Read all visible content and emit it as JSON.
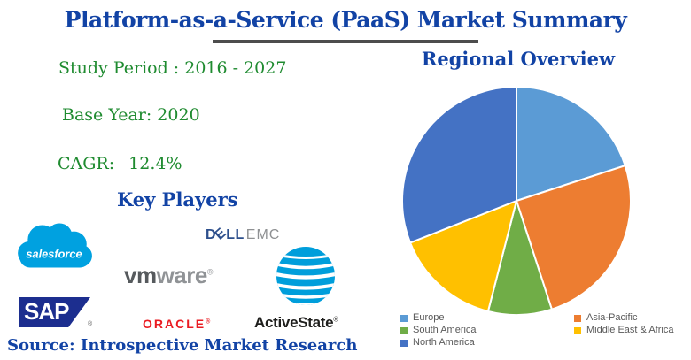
{
  "page": {
    "title": "Platform-as-a-Service (PaaS) Market Summary",
    "source_note": "Source: Introspective Market Research",
    "accent_blue": "#1243a5",
    "stat_green": "#1f8b30",
    "underline_color": "#4d4d4d",
    "legend_text_color": "#595959"
  },
  "stats": {
    "study_period": "Study Period : 2016 - 2027",
    "base_year": "Base Year: 2020",
    "cagr_label": "CAGR:",
    "cagr_value": "12.4%"
  },
  "key_players": {
    "heading": "Key Players",
    "logos": {
      "salesforce": {
        "text": "salesforce",
        "color": "#00A1E0"
      },
      "dell_emc": {
        "d": "D",
        "e": "E",
        "ll": "LL",
        "emc": "EMC",
        "dell_color": "#2d4f8c",
        "emc_color": "#8f9193"
      },
      "vmware": {
        "vm": "vm",
        "ware": "ware",
        "reg": "®"
      },
      "att": {
        "icon": "att-globe",
        "color": "#009EDB"
      },
      "sap": {
        "text": "SAP",
        "reg": "®",
        "color": "#1c2e8f"
      },
      "oracle": {
        "text": "ORACLE",
        "reg": "®",
        "color": "#ea1b22"
      },
      "activestate": {
        "text": "ActiveState",
        "reg": "®"
      }
    }
  },
  "regional_heading": "Regional Overview",
  "chart_data": {
    "type": "pie",
    "title": "Regional Overview",
    "labels": [
      "Europe",
      "Asia-Pacific",
      "South America",
      "Middle East & Africa",
      "North America"
    ],
    "values": [
      20,
      25,
      9,
      15,
      31
    ],
    "colors": [
      "#5B9BD5",
      "#ED7D31",
      "#70AD47",
      "#FFC000",
      "#4472C4"
    ],
    "start_angle_deg": 0,
    "direction": "clockwise",
    "slice_separator": "#ffffff",
    "legend_position": "bottom",
    "legend_columns": 2,
    "grid": false
  }
}
